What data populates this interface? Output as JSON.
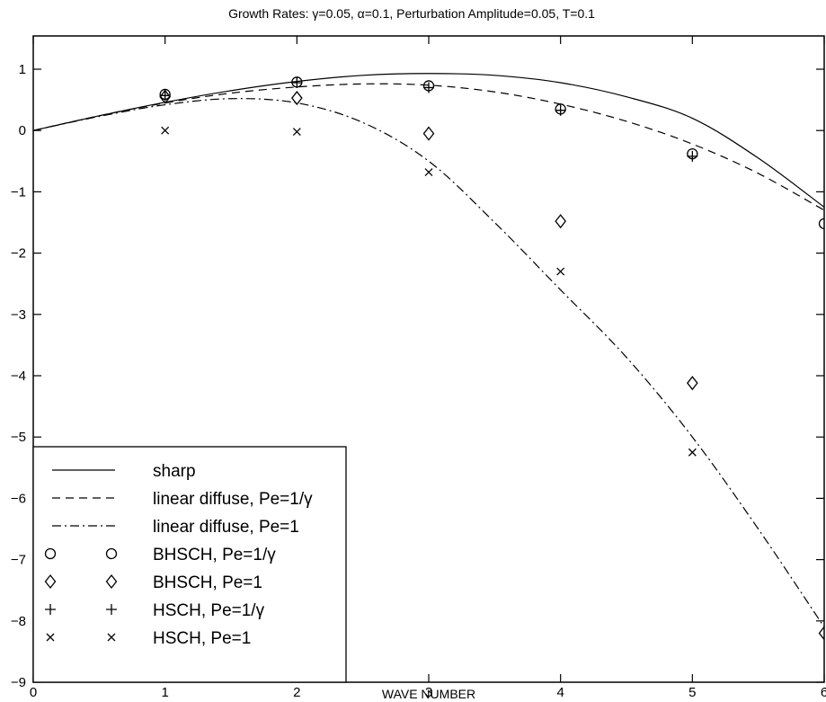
{
  "chart_data": {
    "type": "line",
    "title": "Growth Rates: γ=0.05, α=0.1, Perturbation Amplitude=0.05, T=0.1",
    "xlabel": "WAVE NUMBER",
    "ylabel": "",
    "xlim": [
      0,
      6
    ],
    "ylim": [
      -9,
      1.5
    ],
    "xticks": [
      "0",
      "1",
      "2",
      "3",
      "4",
      "5",
      "6"
    ],
    "yticks": [
      "1",
      "0",
      "−1",
      "−2",
      "−3",
      "−4",
      "−5",
      "−6",
      "−7",
      "−8",
      "−9"
    ],
    "legend_position": "bottom-left",
    "grid": false,
    "series": [
      {
        "name": "sharp",
        "style": "solid",
        "x": [
          0,
          0.5,
          1,
          1.5,
          2,
          2.5,
          3,
          3.5,
          4,
          4.5,
          5,
          5.5,
          6
        ],
        "y": [
          0,
          0.24,
          0.46,
          0.65,
          0.8,
          0.9,
          0.93,
          0.9,
          0.78,
          0.55,
          0.2,
          -0.45,
          -1.25
        ]
      },
      {
        "name": "linear diffuse, Pe=1/γ",
        "style": "dashed",
        "x": [
          0,
          0.5,
          1,
          1.5,
          2,
          2.5,
          3,
          3.5,
          4,
          4.5,
          5,
          5.5,
          6
        ],
        "y": [
          0,
          0.24,
          0.45,
          0.61,
          0.71,
          0.76,
          0.74,
          0.63,
          0.43,
          0.15,
          -0.22,
          -0.7,
          -1.3
        ]
      },
      {
        "name": "linear diffuse, Pe=1",
        "style": "dashdot",
        "x": [
          0,
          0.5,
          1,
          1.5,
          2,
          2.5,
          3,
          3.5,
          4,
          4.5,
          5,
          5.5,
          6
        ],
        "y": [
          0,
          0.23,
          0.42,
          0.52,
          0.45,
          0.13,
          -0.5,
          -1.5,
          -2.6,
          -3.7,
          -5.0,
          -6.5,
          -8.1
        ]
      },
      {
        "name": "BHSCH, Pe=1/γ",
        "style": "marker",
        "marker": "circle",
        "x": [
          1,
          2,
          3,
          4,
          5,
          6
        ],
        "y": [
          0.59,
          0.79,
          0.73,
          0.35,
          -0.38,
          -1.52
        ]
      },
      {
        "name": "BHSCH, Pe=1",
        "style": "marker",
        "marker": "diamond",
        "x": [
          1,
          2,
          3,
          4,
          5,
          6
        ],
        "y": [
          0.55,
          0.53,
          -0.05,
          -1.48,
          -4.12,
          -8.2
        ]
      },
      {
        "name": "HSCH, Pe=1/γ",
        "style": "marker",
        "marker": "plus",
        "x": [
          1,
          2,
          3,
          4,
          5
        ],
        "y": [
          0.57,
          0.78,
          0.7,
          0.33,
          -0.42
        ]
      },
      {
        "name": "HSCH, Pe=1",
        "style": "marker",
        "marker": "x",
        "x": [
          1,
          2,
          3,
          4,
          5
        ],
        "y": [
          0.0,
          -0.02,
          -0.68,
          -2.3,
          -5.25
        ]
      }
    ]
  }
}
